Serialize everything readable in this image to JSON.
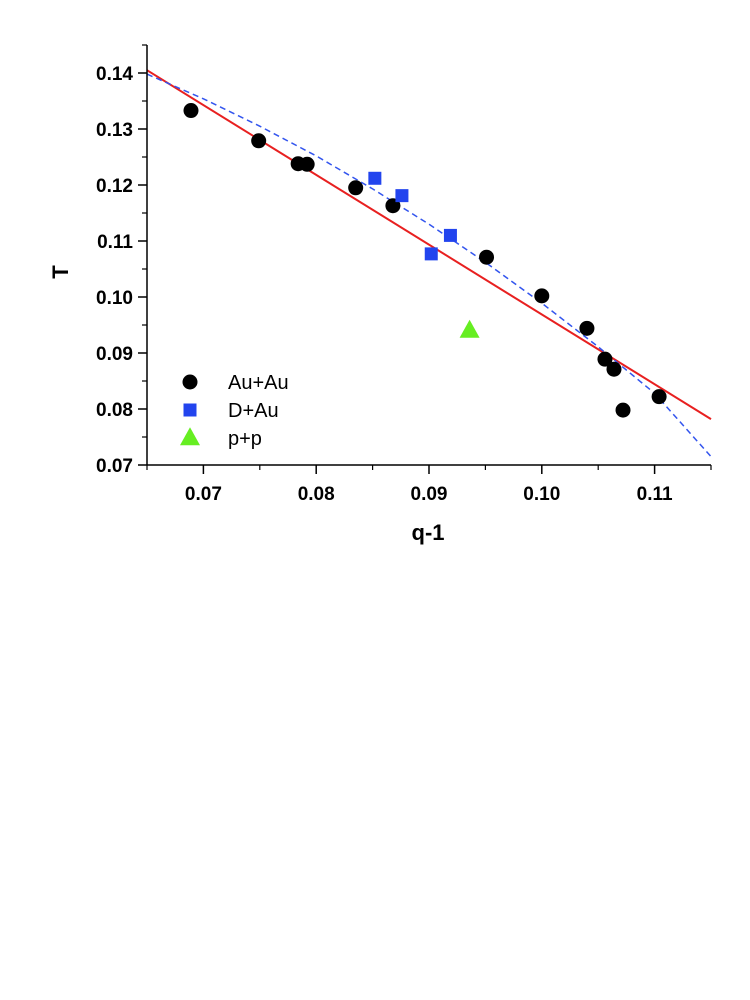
{
  "chart_data": {
    "type": "scatter",
    "xlabel": "q-1",
    "ylabel": "T",
    "xlim": [
      0.065,
      0.115
    ],
    "ylim": [
      0.07,
      0.145
    ],
    "xticks": [
      "0.07",
      "0.08",
      "0.09",
      "0.10",
      "0.11"
    ],
    "yticks": [
      "0.07",
      "0.08",
      "0.09",
      "0.10",
      "0.11",
      "0.12",
      "0.13",
      "0.14"
    ],
    "grid": false,
    "legend_position": "bottom-left",
    "series": [
      {
        "name": "Au+Au",
        "marker": "circle",
        "color": "#000000",
        "points": [
          [
            0.0689,
            0.1333
          ],
          [
            0.0749,
            0.1279
          ],
          [
            0.0784,
            0.1238
          ],
          [
            0.0792,
            0.1237
          ],
          [
            0.0835,
            0.1195
          ],
          [
            0.0868,
            0.1163
          ],
          [
            0.0951,
            0.1071
          ],
          [
            0.1,
            0.1002
          ],
          [
            0.104,
            0.0944
          ],
          [
            0.1056,
            0.0889
          ],
          [
            0.1064,
            0.0871
          ],
          [
            0.1072,
            0.0798
          ],
          [
            0.1104,
            0.0822
          ]
        ]
      },
      {
        "name": "D+Au",
        "marker": "square",
        "color": "#2244ee",
        "points": [
          [
            0.0852,
            0.1212
          ],
          [
            0.0876,
            0.1181
          ],
          [
            0.0902,
            0.1077
          ],
          [
            0.0919,
            0.111
          ]
        ]
      },
      {
        "name": "p+p",
        "marker": "triangle",
        "color": "#66ee22",
        "points": [
          [
            0.0936,
            0.094
          ]
        ]
      }
    ],
    "lines": [
      {
        "style": "solid",
        "color": "#e82020",
        "points": [
          [
            0.065,
            0.1405
          ],
          [
            0.115,
            0.0782
          ]
        ]
      },
      {
        "style": "dashed",
        "color": "#3355ee",
        "points": [
          [
            0.065,
            0.1398
          ],
          [
            0.07,
            0.1354
          ],
          [
            0.075,
            0.1305
          ],
          [
            0.08,
            0.1252
          ],
          [
            0.085,
            0.1193
          ],
          [
            0.09,
            0.113
          ],
          [
            0.095,
            0.1062
          ],
          [
            0.1,
            0.0989
          ],
          [
            0.105,
            0.0911
          ],
          [
            0.11,
            0.0828
          ],
          [
            0.115,
            0.0715
          ]
        ]
      }
    ]
  }
}
